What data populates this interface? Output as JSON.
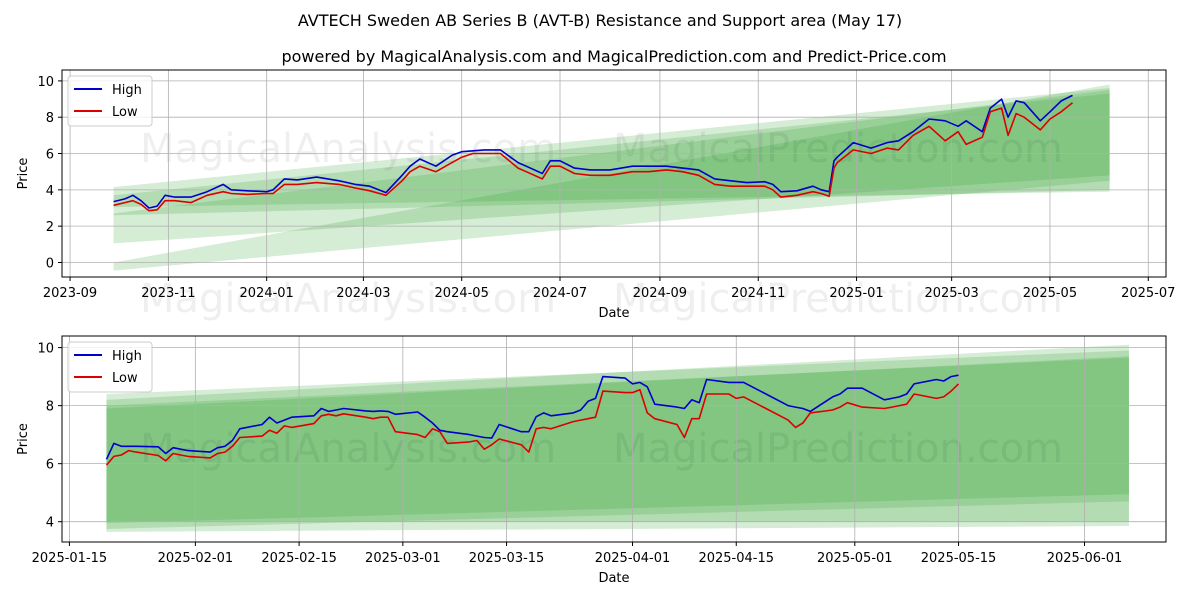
{
  "title": "AVTECH Sweden AB Series B (AVT-B) Resistance and Support area (May 17)",
  "subtitle": "powered by MagicalAnalysis.com and MagicalPrediction.com and Predict-Price.com",
  "watermarks": [
    "MagicalAnalysis.com",
    "MagicalPrediction.com"
  ],
  "colors": {
    "high": "#0000cc",
    "low": "#dd0000",
    "band": "#2e9e2e",
    "grid": "#b0b0b0"
  },
  "chart_data": [
    {
      "type": "line",
      "xlabel": "Date",
      "ylabel": "Price",
      "xlim": [
        "2023-08-27",
        "2025-07-12"
      ],
      "ylim": [
        -0.8,
        10.6
      ],
      "yticks": [
        0,
        2,
        4,
        6,
        8,
        10
      ],
      "xticks": [
        "2023-09",
        "2023-11",
        "2024-01",
        "2024-03",
        "2024-05",
        "2024-07",
        "2024-09",
        "2024-11",
        "2025-01",
        "2025-03",
        "2025-05",
        "2025-07"
      ],
      "legend": {
        "position": "top-left",
        "entries": [
          "High",
          "Low"
        ]
      },
      "grid": true,
      "bands": [
        {
          "x": [
            "2023-09-28",
            "2025-06-07"
          ],
          "upper": [
            4.15,
            9.6
          ],
          "lower": [
            3.05,
            3.9
          ]
        },
        {
          "x": [
            "2023-09-28",
            "2025-06-07"
          ],
          "upper": [
            2.7,
            9.5
          ],
          "lower": [
            1.05,
            4.8
          ]
        },
        {
          "x": [
            "2023-09-28",
            "2025-06-07"
          ],
          "upper": [
            0.0,
            9.8
          ],
          "lower": [
            -0.45,
            4.5
          ]
        },
        {
          "x": [
            "2023-09-28",
            "2025-06-07"
          ],
          "upper": [
            3.7,
            9.3
          ],
          "lower": [
            2.6,
            4.0
          ]
        }
      ],
      "series": [
        {
          "name": "High",
          "x": [
            "2023-09-28",
            "2023-10-05",
            "2023-10-10",
            "2023-10-15",
            "2023-10-20",
            "2023-10-25",
            "2023-10-30",
            "2023-11-05",
            "2023-11-15",
            "2023-11-25",
            "2023-12-05",
            "2023-12-10",
            "2023-12-20",
            "2024-01-01",
            "2024-01-05",
            "2024-01-12",
            "2024-01-20",
            "2024-02-01",
            "2024-02-15",
            "2024-02-25",
            "2024-03-05",
            "2024-03-15",
            "2024-03-25",
            "2024-03-30",
            "2024-04-05",
            "2024-04-15",
            "2024-04-25",
            "2024-05-01",
            "2024-05-08",
            "2024-05-15",
            "2024-05-25",
            "2024-06-05",
            "2024-06-10",
            "2024-06-20",
            "2024-06-25",
            "2024-07-01",
            "2024-07-10",
            "2024-07-20",
            "2024-08-01",
            "2024-08-15",
            "2024-08-25",
            "2024-09-05",
            "2024-09-15",
            "2024-09-25",
            "2024-10-05",
            "2024-10-15",
            "2024-10-25",
            "2024-11-05",
            "2024-11-10",
            "2024-11-15",
            "2024-11-25",
            "2024-12-05",
            "2024-12-10",
            "2024-12-15",
            "2024-12-18",
            "2024-12-20",
            "2024-12-30",
            "2025-01-10",
            "2025-01-20",
            "2025-01-27",
            "2025-02-05",
            "2025-02-15",
            "2025-02-25",
            "2025-03-05",
            "2025-03-10",
            "2025-03-20",
            "2025-03-25",
            "2025-04-01",
            "2025-04-05",
            "2025-04-10",
            "2025-04-15",
            "2025-04-25",
            "2025-05-01",
            "2025-05-08",
            "2025-05-15"
          ],
          "values": [
            3.35,
            3.5,
            3.7,
            3.4,
            3.0,
            3.1,
            3.7,
            3.6,
            3.6,
            3.9,
            4.3,
            4.0,
            3.95,
            3.9,
            4.0,
            4.6,
            4.55,
            4.7,
            4.5,
            4.3,
            4.2,
            3.85,
            4.8,
            5.3,
            5.7,
            5.3,
            5.9,
            6.1,
            6.15,
            6.2,
            6.2,
            5.5,
            5.3,
            4.9,
            5.6,
            5.6,
            5.2,
            5.1,
            5.1,
            5.3,
            5.3,
            5.3,
            5.2,
            5.1,
            4.6,
            4.5,
            4.4,
            4.45,
            4.3,
            3.9,
            3.95,
            4.2,
            4.0,
            3.9,
            5.6,
            5.8,
            6.6,
            6.3,
            6.6,
            6.7,
            7.2,
            7.9,
            7.8,
            7.5,
            7.8,
            7.2,
            8.5,
            9.0,
            8.0,
            8.9,
            8.8,
            7.8,
            8.3,
            8.9,
            9.2
          ]
        },
        {
          "name": "Low",
          "x": [
            "2023-09-28",
            "2023-10-05",
            "2023-10-10",
            "2023-10-15",
            "2023-10-20",
            "2023-10-25",
            "2023-10-30",
            "2023-11-05",
            "2023-11-15",
            "2023-11-25",
            "2023-12-05",
            "2023-12-10",
            "2023-12-20",
            "2024-01-01",
            "2024-01-05",
            "2024-01-12",
            "2024-01-20",
            "2024-02-01",
            "2024-02-15",
            "2024-02-25",
            "2024-03-05",
            "2024-03-15",
            "2024-03-25",
            "2024-03-30",
            "2024-04-05",
            "2024-04-15",
            "2024-04-25",
            "2024-05-01",
            "2024-05-08",
            "2024-05-15",
            "2024-05-25",
            "2024-06-05",
            "2024-06-10",
            "2024-06-20",
            "2024-06-25",
            "2024-07-01",
            "2024-07-10",
            "2024-07-20",
            "2024-08-01",
            "2024-08-15",
            "2024-08-25",
            "2024-09-05",
            "2024-09-15",
            "2024-09-25",
            "2024-10-05",
            "2024-10-15",
            "2024-10-25",
            "2024-11-05",
            "2024-11-10",
            "2024-11-15",
            "2024-11-25",
            "2024-12-05",
            "2024-12-10",
            "2024-12-15",
            "2024-12-18",
            "2024-12-20",
            "2024-12-30",
            "2025-01-10",
            "2025-01-20",
            "2025-01-27",
            "2025-02-05",
            "2025-02-15",
            "2025-02-25",
            "2025-03-05",
            "2025-03-10",
            "2025-03-20",
            "2025-03-25",
            "2025-04-01",
            "2025-04-05",
            "2025-04-10",
            "2025-04-15",
            "2025-04-25",
            "2025-05-01",
            "2025-05-08",
            "2025-05-15"
          ],
          "values": [
            3.15,
            3.3,
            3.4,
            3.2,
            2.85,
            2.9,
            3.4,
            3.4,
            3.3,
            3.7,
            3.9,
            3.8,
            3.75,
            3.8,
            3.8,
            4.3,
            4.3,
            4.4,
            4.3,
            4.1,
            3.95,
            3.7,
            4.5,
            5.0,
            5.3,
            5.0,
            5.5,
            5.8,
            6.0,
            6.0,
            6.0,
            5.2,
            5.0,
            4.6,
            5.3,
            5.3,
            4.9,
            4.8,
            4.8,
            5.0,
            5.0,
            5.1,
            5.0,
            4.8,
            4.3,
            4.2,
            4.2,
            4.2,
            4.0,
            3.6,
            3.7,
            3.9,
            3.8,
            3.65,
            5.2,
            5.5,
            6.2,
            6.0,
            6.3,
            6.2,
            7.0,
            7.5,
            6.7,
            7.2,
            6.5,
            6.9,
            8.3,
            8.5,
            7.0,
            8.2,
            8.0,
            7.3,
            7.9,
            8.3,
            8.8
          ]
        }
      ]
    },
    {
      "type": "line",
      "xlabel": "Date",
      "ylabel": "Price",
      "xlim": [
        "2025-01-14",
        "2025-06-12"
      ],
      "ylim": [
        3.3,
        10.4
      ],
      "yticks": [
        4,
        6,
        8,
        10
      ],
      "xticks": [
        "2025-01-15",
        "2025-02-01",
        "2025-02-15",
        "2025-03-01",
        "2025-03-15",
        "2025-04-01",
        "2025-04-15",
        "2025-05-01",
        "2025-05-15",
        "2025-06-01"
      ],
      "legend": {
        "position": "top-left",
        "entries": [
          "High",
          "Low"
        ]
      },
      "grid": true,
      "bands": [
        {
          "x": [
            "2025-01-20",
            "2025-06-07"
          ],
          "upper": [
            8.0,
            9.65
          ],
          "lower": [
            3.95,
            4.95
          ]
        },
        {
          "x": [
            "2025-01-20",
            "2025-06-07"
          ],
          "upper": [
            8.4,
            9.9
          ],
          "lower": [
            3.75,
            4.7
          ]
        },
        {
          "x": [
            "2025-01-20",
            "2025-06-07"
          ],
          "upper": [
            8.2,
            10.1
          ],
          "lower": [
            3.65,
            3.85
          ]
        },
        {
          "x": [
            "2025-01-20",
            "2025-06-07"
          ],
          "upper": [
            7.9,
            9.7
          ],
          "lower": [
            4.0,
            4.0
          ]
        }
      ],
      "series": [
        {
          "name": "High",
          "x": [
            "2025-01-20",
            "2025-01-21",
            "2025-01-22",
            "2025-01-23",
            "2025-01-24",
            "2025-01-27",
            "2025-01-28",
            "2025-01-29",
            "2025-01-30",
            "2025-01-31",
            "2025-02-03",
            "2025-02-04",
            "2025-02-05",
            "2025-02-06",
            "2025-02-07",
            "2025-02-10",
            "2025-02-11",
            "2025-02-12",
            "2025-02-13",
            "2025-02-14",
            "2025-02-17",
            "2025-02-18",
            "2025-02-19",
            "2025-02-20",
            "2025-02-21",
            "2025-02-24",
            "2025-02-25",
            "2025-02-26",
            "2025-02-27",
            "2025-02-28",
            "2025-03-03",
            "2025-03-04",
            "2025-03-05",
            "2025-03-06",
            "2025-03-07",
            "2025-03-10",
            "2025-03-11",
            "2025-03-12",
            "2025-03-13",
            "2025-03-14",
            "2025-03-17",
            "2025-03-18",
            "2025-03-19",
            "2025-03-20",
            "2025-03-21",
            "2025-03-24",
            "2025-03-25",
            "2025-03-26",
            "2025-03-27",
            "2025-03-28",
            "2025-03-31",
            "2025-04-01",
            "2025-04-02",
            "2025-04-03",
            "2025-04-04",
            "2025-04-07",
            "2025-04-08",
            "2025-04-09",
            "2025-04-10",
            "2025-04-11",
            "2025-04-14",
            "2025-04-15",
            "2025-04-16",
            "2025-04-22",
            "2025-04-23",
            "2025-04-24",
            "2025-04-25",
            "2025-04-28",
            "2025-04-29",
            "2025-04-30",
            "2025-05-02",
            "2025-05-05",
            "2025-05-06",
            "2025-05-07",
            "2025-05-08",
            "2025-05-09",
            "2025-05-12",
            "2025-05-13",
            "2025-05-14",
            "2025-05-15"
          ],
          "values": [
            6.15,
            6.7,
            6.6,
            6.6,
            6.6,
            6.58,
            6.35,
            6.55,
            6.5,
            6.45,
            6.4,
            6.55,
            6.6,
            6.8,
            7.2,
            7.35,
            7.6,
            7.4,
            7.5,
            7.6,
            7.65,
            7.9,
            7.8,
            7.85,
            7.9,
            7.82,
            7.8,
            7.82,
            7.8,
            7.7,
            7.78,
            7.6,
            7.4,
            7.15,
            7.1,
            7.0,
            6.95,
            6.9,
            6.88,
            7.35,
            7.1,
            7.1,
            7.62,
            7.75,
            7.65,
            7.75,
            7.85,
            8.15,
            8.25,
            9.0,
            8.95,
            8.75,
            8.8,
            8.65,
            8.05,
            7.95,
            7.9,
            8.2,
            8.1,
            8.9,
            8.8,
            8.8,
            8.8,
            8.0,
            7.95,
            7.9,
            7.8,
            8.3,
            8.4,
            8.6,
            8.6,
            8.2,
            8.25,
            8.3,
            8.4,
            8.75,
            8.9,
            8.85,
            9.0,
            9.05
          ]
        },
        {
          "name": "Low",
          "x": [
            "2025-01-20",
            "2025-01-21",
            "2025-01-22",
            "2025-01-23",
            "2025-01-24",
            "2025-01-27",
            "2025-01-28",
            "2025-01-29",
            "2025-01-30",
            "2025-01-31",
            "2025-02-03",
            "2025-02-04",
            "2025-02-05",
            "2025-02-06",
            "2025-02-07",
            "2025-02-10",
            "2025-02-11",
            "2025-02-12",
            "2025-02-13",
            "2025-02-14",
            "2025-02-17",
            "2025-02-18",
            "2025-02-19",
            "2025-02-20",
            "2025-02-21",
            "2025-02-24",
            "2025-02-25",
            "2025-02-26",
            "2025-02-27",
            "2025-02-28",
            "2025-03-03",
            "2025-03-04",
            "2025-03-05",
            "2025-03-06",
            "2025-03-07",
            "2025-03-10",
            "2025-03-11",
            "2025-03-12",
            "2025-03-13",
            "2025-03-14",
            "2025-03-17",
            "2025-03-18",
            "2025-03-19",
            "2025-03-20",
            "2025-03-21",
            "2025-03-24",
            "2025-03-25",
            "2025-03-26",
            "2025-03-27",
            "2025-03-28",
            "2025-03-31",
            "2025-04-01",
            "2025-04-02",
            "2025-04-03",
            "2025-04-04",
            "2025-04-07",
            "2025-04-08",
            "2025-04-09",
            "2025-04-10",
            "2025-04-11",
            "2025-04-14",
            "2025-04-15",
            "2025-04-16",
            "2025-04-22",
            "2025-04-23",
            "2025-04-24",
            "2025-04-25",
            "2025-04-28",
            "2025-04-29",
            "2025-04-30",
            "2025-05-02",
            "2025-05-05",
            "2025-05-06",
            "2025-05-07",
            "2025-05-08",
            "2025-05-09",
            "2025-05-12",
            "2025-05-13",
            "2025-05-14",
            "2025-05-15"
          ],
          "values": [
            5.95,
            6.25,
            6.3,
            6.45,
            6.4,
            6.28,
            6.1,
            6.35,
            6.3,
            6.25,
            6.2,
            6.35,
            6.4,
            6.6,
            6.9,
            6.95,
            7.15,
            7.05,
            7.3,
            7.25,
            7.38,
            7.65,
            7.7,
            7.65,
            7.72,
            7.6,
            7.55,
            7.6,
            7.6,
            7.1,
            7.0,
            6.9,
            7.2,
            7.1,
            6.7,
            6.75,
            6.8,
            6.5,
            6.65,
            6.85,
            6.65,
            6.4,
            7.2,
            7.25,
            7.2,
            7.45,
            7.5,
            7.55,
            7.6,
            8.5,
            8.45,
            8.45,
            8.55,
            7.75,
            7.55,
            7.35,
            6.9,
            7.55,
            7.55,
            8.4,
            8.4,
            8.25,
            8.3,
            7.5,
            7.25,
            7.4,
            7.75,
            7.85,
            7.95,
            8.1,
            7.95,
            7.9,
            7.95,
            8.0,
            8.05,
            8.4,
            8.25,
            8.3,
            8.5,
            8.75
          ]
        }
      ]
    }
  ]
}
